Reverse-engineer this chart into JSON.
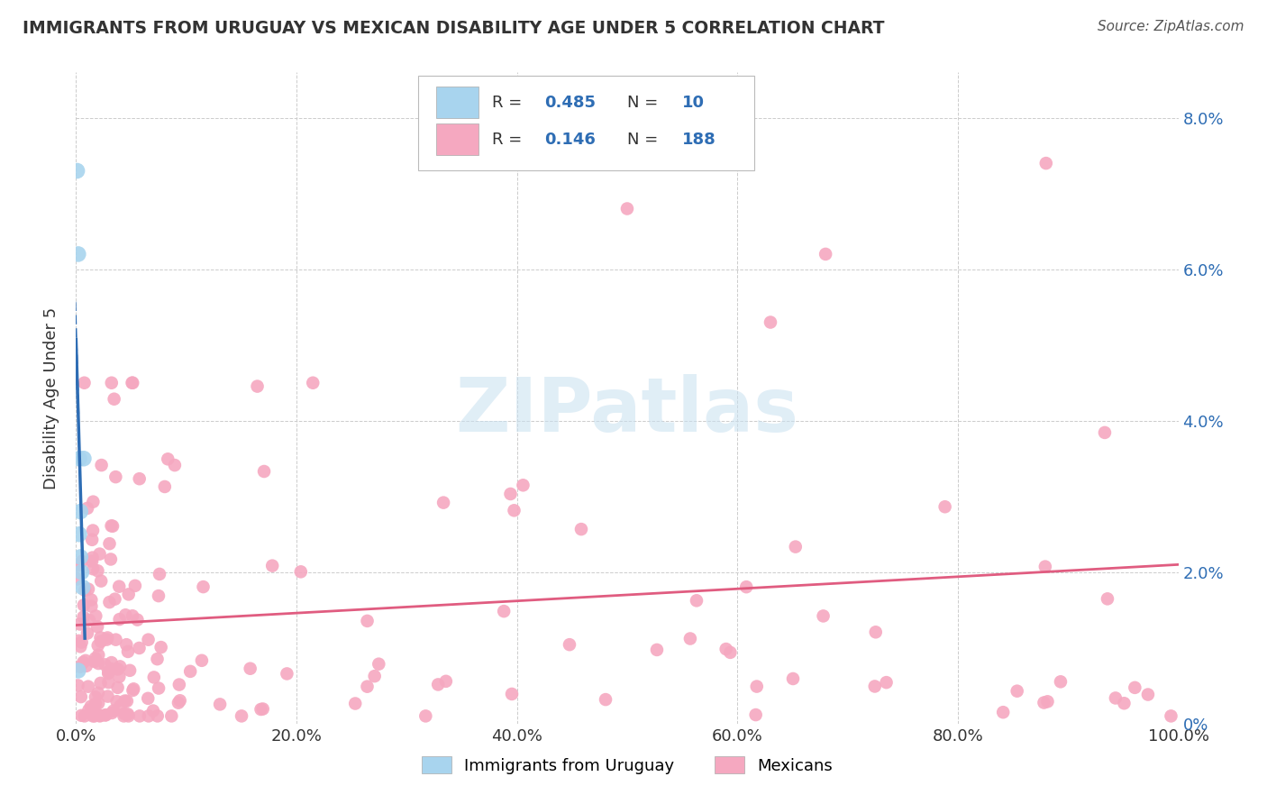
{
  "title": "IMMIGRANTS FROM URUGUAY VS MEXICAN DISABILITY AGE UNDER 5 CORRELATION CHART",
  "source": "Source: ZipAtlas.com",
  "ylabel": "Disability Age Under 5",
  "watermark_text": "ZIPatlas",
  "uruguay_R": 0.485,
  "uruguay_N": 10,
  "mexican_R": 0.146,
  "mexican_N": 188,
  "uruguay_color": "#A8D4EE",
  "mexican_color": "#F5A8C0",
  "uruguay_line_color": "#2E6DB4",
  "mexican_line_color": "#E05C80",
  "background_color": "#FFFFFF",
  "grid_color": "#CCCCCC",
  "ymin": 0.0,
  "ymax": 0.086,
  "xmin": 0.0,
  "xmax": 1.0,
  "yticks": [
    0.0,
    0.02,
    0.04,
    0.06,
    0.08
  ],
  "ytick_labels": [
    "0%",
    "2.0%",
    "4.0%",
    "6.0%",
    "8.0%"
  ],
  "xticks": [
    0.0,
    0.2,
    0.4,
    0.6,
    0.8,
    1.0
  ],
  "xtick_labels": [
    "0.0%",
    "20.0%",
    "40.0%",
    "60.0%",
    "80.0%",
    "100.0%"
  ],
  "legend_R1": "0.485",
  "legend_N1": "10",
  "legend_R2": "0.146",
  "legend_N2": "188",
  "legend_label1": "Immigrants from Uruguay",
  "legend_label2": "Mexicans"
}
